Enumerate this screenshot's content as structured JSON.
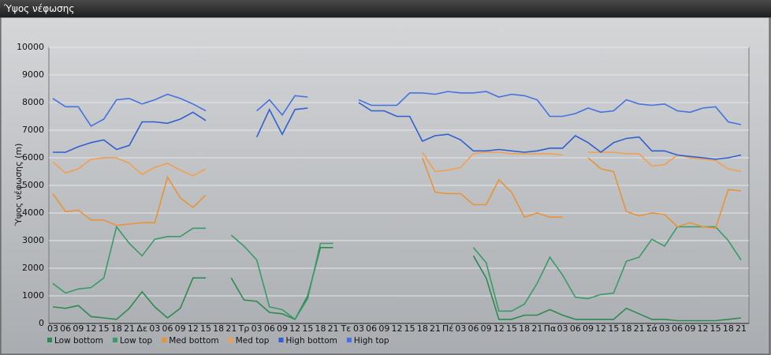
{
  "chart_data": {
    "type": "line",
    "title": "Ύψος νέφωσης",
    "y_label": "Ύψος νέφωσης (m)",
    "categories": [
      "03",
      "06",
      "09",
      "12",
      "15",
      "18",
      "21",
      "Δε",
      "03",
      "06",
      "09",
      "12",
      "15",
      "18",
      "21",
      "Τρ",
      "03",
      "06",
      "09",
      "12",
      "15",
      "18",
      "21",
      "Τε",
      "03",
      "06",
      "09",
      "12",
      "15",
      "18",
      "21",
      "Πέ",
      "03",
      "06",
      "09",
      "12",
      "15",
      "18",
      "21",
      "Πα",
      "03",
      "06",
      "09",
      "12",
      "15",
      "18",
      "21",
      "Σά",
      "03",
      "06",
      "09",
      "12",
      "15",
      "18",
      "21"
    ],
    "ylim": [
      0,
      10000
    ],
    "yticks": [
      0,
      1000,
      2000,
      3000,
      4000,
      5000,
      6000,
      7000,
      8000,
      9000,
      10000
    ],
    "grid": true,
    "series": [
      {
        "name": "Low bottom",
        "color": "#2e8a50",
        "values": [
          600,
          550,
          650,
          250,
          200,
          150,
          550,
          1150,
          600,
          200,
          550,
          1650,
          1650,
          null,
          1650,
          850,
          800,
          400,
          350,
          150,
          1000,
          2750,
          2750,
          null,
          null,
          null,
          null,
          null,
          null,
          null,
          null,
          null,
          null,
          2450,
          1650,
          150,
          150,
          300,
          300,
          500,
          300,
          150,
          150,
          150,
          150,
          550,
          350,
          150,
          150,
          100,
          100,
          100,
          100,
          150,
          200
        ]
      },
      {
        "name": "Low top",
        "color": "#3a9a68",
        "values": [
          1450,
          1100,
          1250,
          1300,
          1650,
          3500,
          2900,
          2450,
          3050,
          3150,
          3150,
          3450,
          3450,
          null,
          3200,
          2800,
          2300,
          600,
          500,
          150,
          900,
          2900,
          2900,
          null,
          null,
          null,
          null,
          null,
          null,
          null,
          null,
          null,
          null,
          2750,
          2200,
          450,
          450,
          700,
          1450,
          2400,
          1750,
          950,
          900,
          1050,
          1100,
          2250,
          2400,
          3050,
          2800,
          3500,
          3500,
          3500,
          3500,
          3000,
          2300
        ]
      },
      {
        "name": "Med bottom",
        "color": "#e8923a",
        "values": [
          4700,
          4050,
          4100,
          3750,
          3750,
          3550,
          3600,
          3650,
          3650,
          5300,
          4550,
          4200,
          4650,
          null,
          null,
          null,
          null,
          null,
          null,
          null,
          null,
          null,
          null,
          null,
          null,
          null,
          null,
          null,
          null,
          6000,
          4750,
          4700,
          4700,
          4300,
          4300,
          5200,
          4750,
          3850,
          4000,
          3850,
          3850,
          null,
          6000,
          5600,
          5500,
          4050,
          3900,
          4000,
          3950,
          3500,
          3650,
          3500,
          3450,
          4850,
          4800
        ]
      },
      {
        "name": "Med top",
        "color": "#f0a050",
        "values": [
          5850,
          5450,
          5600,
          5950,
          6000,
          6000,
          5800,
          5400,
          5650,
          5800,
          5550,
          5350,
          5600,
          null,
          null,
          null,
          null,
          null,
          null,
          null,
          null,
          null,
          null,
          null,
          null,
          null,
          null,
          null,
          null,
          6200,
          5500,
          5550,
          5650,
          6150,
          6200,
          6200,
          6150,
          6150,
          6150,
          6150,
          6100,
          null,
          6200,
          6200,
          6200,
          6150,
          6150,
          5700,
          5750,
          6100,
          6000,
          5950,
          5900,
          5600,
          5500
        ]
      },
      {
        "name": "High bottom",
        "color": "#2f5fd0",
        "values": [
          6200,
          6200,
          6400,
          6550,
          6650,
          6300,
          6450,
          7300,
          7300,
          7250,
          7400,
          7650,
          7350,
          null,
          null,
          null,
          6750,
          7750,
          6850,
          7750,
          7800,
          null,
          null,
          null,
          8000,
          7700,
          7700,
          7500,
          7500,
          6600,
          6800,
          6850,
          6650,
          6250,
          6250,
          6300,
          6250,
          6200,
          6250,
          6350,
          6350,
          6800,
          6550,
          6200,
          6550,
          6700,
          6750,
          6250,
          6250,
          6100,
          6050,
          6000,
          5950,
          6000,
          6100
        ]
      },
      {
        "name": "High top",
        "color": "#4472e0",
        "values": [
          8150,
          7850,
          7850,
          7150,
          7400,
          8100,
          8150,
          7950,
          8100,
          8300,
          8150,
          7950,
          7700,
          null,
          null,
          null,
          7700,
          8100,
          7550,
          8250,
          8200,
          null,
          null,
          null,
          8100,
          7900,
          7900,
          7900,
          8350,
          8350,
          8300,
          8400,
          8350,
          8350,
          8400,
          8200,
          8300,
          8250,
          8100,
          7500,
          7500,
          7600,
          7800,
          7650,
          7700,
          8100,
          7950,
          7900,
          7950,
          7700,
          7650,
          7800,
          7850,
          7300,
          7200
        ]
      }
    ]
  }
}
